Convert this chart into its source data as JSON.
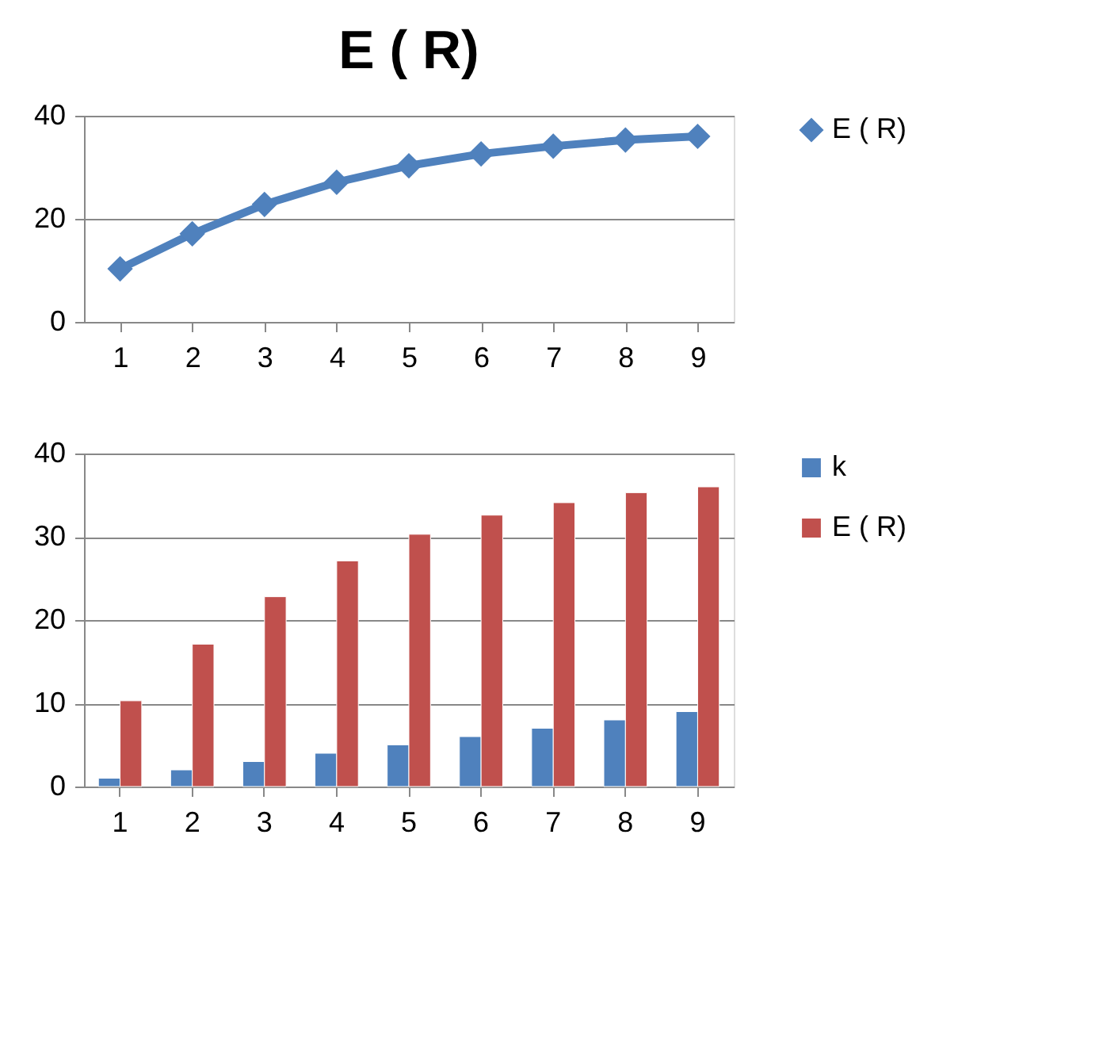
{
  "chart_data": [
    {
      "type": "line",
      "title": "E  ( R)",
      "categories": [
        "1",
        "2",
        "3",
        "4",
        "5",
        "6",
        "7",
        "8",
        "9"
      ],
      "series": [
        {
          "name": "E  ( R)",
          "color": "#4f81bd",
          "values": [
            10.3,
            17.1,
            22.8,
            27.1,
            30.3,
            32.6,
            34.1,
            35.3,
            36.0
          ]
        }
      ],
      "ylim": [
        0,
        40
      ],
      "yticks": [
        0,
        20,
        40
      ],
      "grid": "y",
      "legend": "right",
      "marker": "diamond"
    },
    {
      "type": "bar",
      "categories": [
        "1",
        "2",
        "3",
        "4",
        "5",
        "6",
        "7",
        "8",
        "9"
      ],
      "series": [
        {
          "name": "k",
          "color": "#4f81bd",
          "values": [
            1,
            2,
            3,
            4,
            5,
            6,
            7,
            8,
            9
          ]
        },
        {
          "name": "E  ( R)",
          "color": "#c0504d",
          "values": [
            10.3,
            17.1,
            22.8,
            27.1,
            30.3,
            32.6,
            34.1,
            35.3,
            36.0
          ]
        }
      ],
      "ylim": [
        0,
        40
      ],
      "yticks": [
        0,
        10,
        20,
        30,
        40
      ],
      "grid": "y",
      "legend": "right"
    }
  ]
}
